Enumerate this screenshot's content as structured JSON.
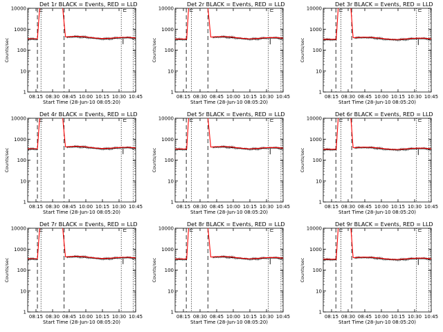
{
  "chart_data": {
    "type": "line",
    "layout": "3x3 grid",
    "y_scale": "log",
    "ylim": [
      1,
      10000
    ],
    "grid": false,
    "legend": "none",
    "ylabel": "Counts/sec",
    "xlabel": "Start Time (28-Jun-10 08:05:20)",
    "x_ticks": [
      "08:15",
      "08:30",
      "08:45",
      "10:00",
      "10:15",
      "10:30",
      "10:45"
    ],
    "y_ticks": [
      "1",
      "10",
      "100",
      "1000",
      "10000"
    ],
    "event_marker_glyph": "⊏",
    "colors": {
      "events": "#000000",
      "lld": "#ff0000"
    },
    "panels": [
      {
        "title": "Det 1r BLACK = Events, RED = LLD",
        "rise_start": 1.35,
        "rise_end": 1.75,
        "fall_start": 4.75,
        "fall_end": 5.25,
        "dash1": 1.35,
        "dot1": 1.85,
        "dash2": 5.05,
        "dot2": 13.0,
        "dot3": 14.65,
        "baseline": 350,
        "hump": 430
      },
      {
        "title": "Det 2r BLACK = Events, RED = LLD",
        "rise_start": 1.6,
        "rise_end": 1.95,
        "fall_start": 4.45,
        "fall_end": 4.95,
        "dash1": 1.55,
        "dot1": 2.25,
        "dash2": 4.55,
        "dot2": 12.95,
        "dot3": 14.7,
        "baseline": 340,
        "hump": 420
      },
      {
        "title": "Det 3r BLACK = Events, RED = LLD",
        "rise_start": 1.8,
        "rise_end": 2.15,
        "fall_start": 3.75,
        "fall_end": 4.15,
        "dash1": 1.75,
        "dot1": 2.45,
        "dash2": 3.95,
        "dot2": 12.95,
        "dot3": 14.65,
        "baseline": 330,
        "hump": 390
      },
      {
        "title": "Det 4r BLACK = Events, RED = LLD",
        "rise_start": 1.35,
        "rise_end": 1.75,
        "fall_start": 4.75,
        "fall_end": 5.25,
        "dash1": 1.35,
        "dot1": 1.85,
        "dash2": 5.05,
        "dot2": 13.0,
        "dot3": 14.65,
        "baseline": 350,
        "hump": 430
      },
      {
        "title": "Det 5r BLACK = Events, RED = LLD",
        "rise_start": 1.6,
        "rise_end": 1.95,
        "fall_start": 4.45,
        "fall_end": 4.95,
        "dash1": 1.55,
        "dot1": 2.25,
        "dash2": 4.55,
        "dot2": 12.95,
        "dot3": 14.7,
        "baseline": 340,
        "hump": 420
      },
      {
        "title": "Det 6r BLACK = Events, RED = LLD",
        "rise_start": 1.8,
        "rise_end": 2.15,
        "fall_start": 3.75,
        "fall_end": 4.15,
        "dash1": 1.75,
        "dot1": 2.45,
        "dash2": 3.95,
        "dot2": 12.95,
        "dot3": 14.65,
        "baseline": 330,
        "hump": 390
      },
      {
        "title": "Det 7r BLACK = Events, RED = LLD",
        "rise_start": 1.35,
        "rise_end": 1.75,
        "fall_start": 4.75,
        "fall_end": 5.25,
        "dash1": 1.35,
        "dot1": 1.85,
        "dash2": 5.05,
        "dot2": 13.0,
        "dot3": 14.65,
        "baseline": 350,
        "hump": 430
      },
      {
        "title": "Det 8r BLACK = Events, RED = LLD",
        "rise_start": 1.6,
        "rise_end": 1.95,
        "fall_start": 4.45,
        "fall_end": 4.95,
        "dash1": 1.55,
        "dot1": 2.25,
        "dash2": 4.55,
        "dot2": 12.95,
        "dot3": 14.7,
        "baseline": 340,
        "hump": 420
      },
      {
        "title": "Det 9r BLACK = Events, RED = LLD",
        "rise_start": 1.8,
        "rise_end": 2.15,
        "fall_start": 3.75,
        "fall_end": 4.15,
        "dash1": 1.75,
        "dot1": 2.45,
        "dash2": 3.95,
        "dot2": 12.95,
        "dot3": 14.65,
        "baseline": 330,
        "hump": 390
      }
    ]
  }
}
